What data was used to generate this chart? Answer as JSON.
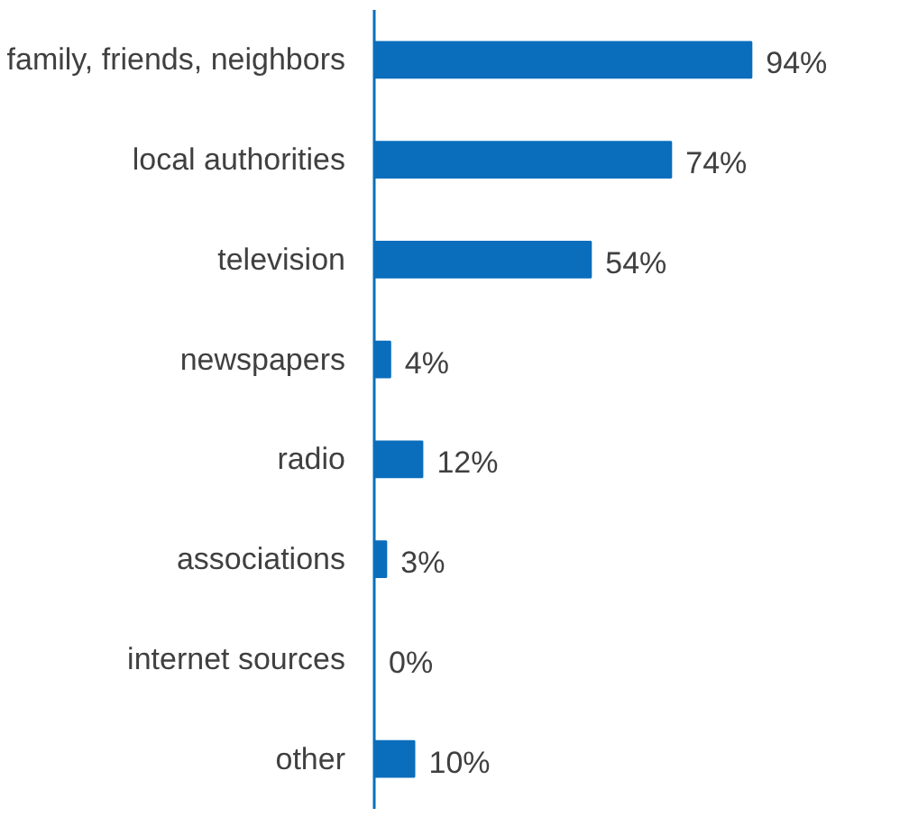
{
  "chart_data": {
    "type": "bar",
    "orientation": "horizontal",
    "categories": [
      "family, friends, neighbors",
      "local authorities",
      "television",
      "newspapers",
      "radio",
      "associations",
      "internet sources",
      "other"
    ],
    "values": [
      94,
      74,
      54,
      4,
      12,
      3,
      0,
      10
    ],
    "color": "#0a6ebd",
    "data_labels": true,
    "value_labels": [
      "94%",
      "74%",
      "54%",
      "4%",
      "12%",
      "3%",
      "0%",
      "10%"
    ],
    "grid": false
  }
}
